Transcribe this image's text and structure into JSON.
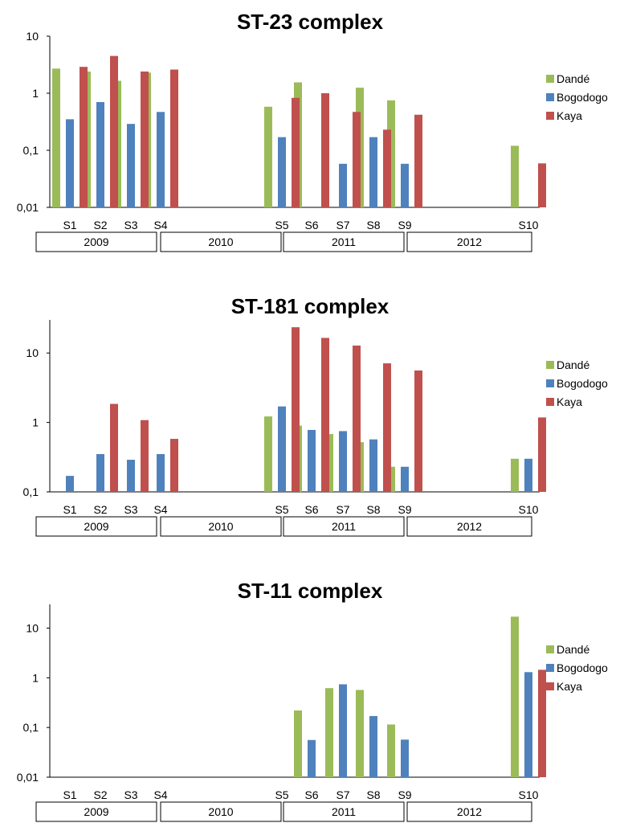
{
  "chart_data": [
    {
      "type": "bar",
      "title": "ST-23 complex",
      "yscale": "log",
      "ylim": [
        0.01,
        10
      ],
      "yticks": [
        0.01,
        0.1,
        1,
        10
      ],
      "ytick_labels": [
        "0,01",
        "0,1",
        "1",
        "10"
      ],
      "categories": [
        "S1",
        "S2",
        "S3",
        "S4",
        "S5",
        "S6",
        "S7",
        "S8",
        "S9",
        "S10"
      ],
      "year_groups": [
        {
          "label": "2009"
        },
        {
          "label": "2010"
        },
        {
          "label": "2011"
        },
        {
          "label": "2012"
        }
      ],
      "legend_position": "right",
      "series": [
        {
          "name": "Dandé",
          "color": "#9bbb59",
          "values": [
            2.7,
            2.4,
            1.65,
            2.3,
            0.58,
            1.55,
            null,
            1.25,
            0.75,
            0.12
          ]
        },
        {
          "name": "Bogodogo",
          "color": "#4f81bd",
          "values": [
            0.35,
            0.7,
            0.29,
            0.47,
            0.17,
            null,
            0.058,
            0.17,
            0.058,
            null
          ]
        },
        {
          "name": "Kaya",
          "color": "#c0504d",
          "values": [
            2.9,
            4.5,
            2.4,
            2.6,
            0.83,
            1.0,
            0.47,
            0.23,
            0.42,
            0.059
          ]
        }
      ]
    },
    {
      "type": "bar",
      "title": "ST-181 complex",
      "yscale": "log",
      "ylim": [
        0.1,
        30
      ],
      "yticks": [
        0.1,
        1,
        10
      ],
      "ytick_labels": [
        "0,1",
        "1",
        "10"
      ],
      "categories": [
        "S1",
        "S2",
        "S3",
        "S4",
        "S5",
        "S6",
        "S7",
        "S8",
        "S9",
        "S10"
      ],
      "year_groups": [
        {
          "label": "2009"
        },
        {
          "label": "2010"
        },
        {
          "label": "2011"
        },
        {
          "label": "2012"
        }
      ],
      "legend_position": "right",
      "series": [
        {
          "name": "Dandé",
          "color": "#9bbb59",
          "values": [
            null,
            null,
            null,
            null,
            1.22,
            0.9,
            0.68,
            0.52,
            0.23,
            0.3
          ]
        },
        {
          "name": "Bogodogo",
          "color": "#4f81bd",
          "values": [
            0.17,
            0.35,
            0.29,
            0.35,
            1.7,
            0.78,
            0.75,
            0.57,
            0.23,
            0.3
          ]
        },
        {
          "name": "Kaya",
          "color": "#c0504d",
          "values": [
            null,
            1.85,
            1.08,
            0.58,
            23.5,
            16.5,
            12.8,
            7.1,
            5.6,
            1.18
          ]
        }
      ]
    },
    {
      "type": "bar",
      "title": "ST-11 complex",
      "yscale": "log",
      "ylim": [
        0.01,
        30
      ],
      "yticks": [
        0.01,
        0.1,
        1,
        10
      ],
      "ytick_labels": [
        "0,01",
        "0,1",
        "1",
        "10"
      ],
      "categories": [
        "S1",
        "S2",
        "S3",
        "S4",
        "S5",
        "S6",
        "S7",
        "S8",
        "S9",
        "S10"
      ],
      "year_groups": [
        {
          "label": "2009"
        },
        {
          "label": "2010"
        },
        {
          "label": "2011"
        },
        {
          "label": "2012"
        }
      ],
      "legend_position": "right",
      "series": [
        {
          "name": "Dandé",
          "color": "#9bbb59",
          "values": [
            null,
            null,
            null,
            null,
            null,
            0.22,
            0.62,
            0.57,
            0.115,
            17
          ]
        },
        {
          "name": "Bogodogo",
          "color": "#4f81bd",
          "values": [
            null,
            null,
            null,
            null,
            null,
            0.056,
            0.74,
            0.17,
            0.057,
            1.3
          ]
        },
        {
          "name": "Kaya",
          "color": "#c0504d",
          "values": [
            null,
            null,
            null,
            null,
            null,
            null,
            null,
            null,
            null,
            1.45
          ]
        }
      ]
    }
  ]
}
